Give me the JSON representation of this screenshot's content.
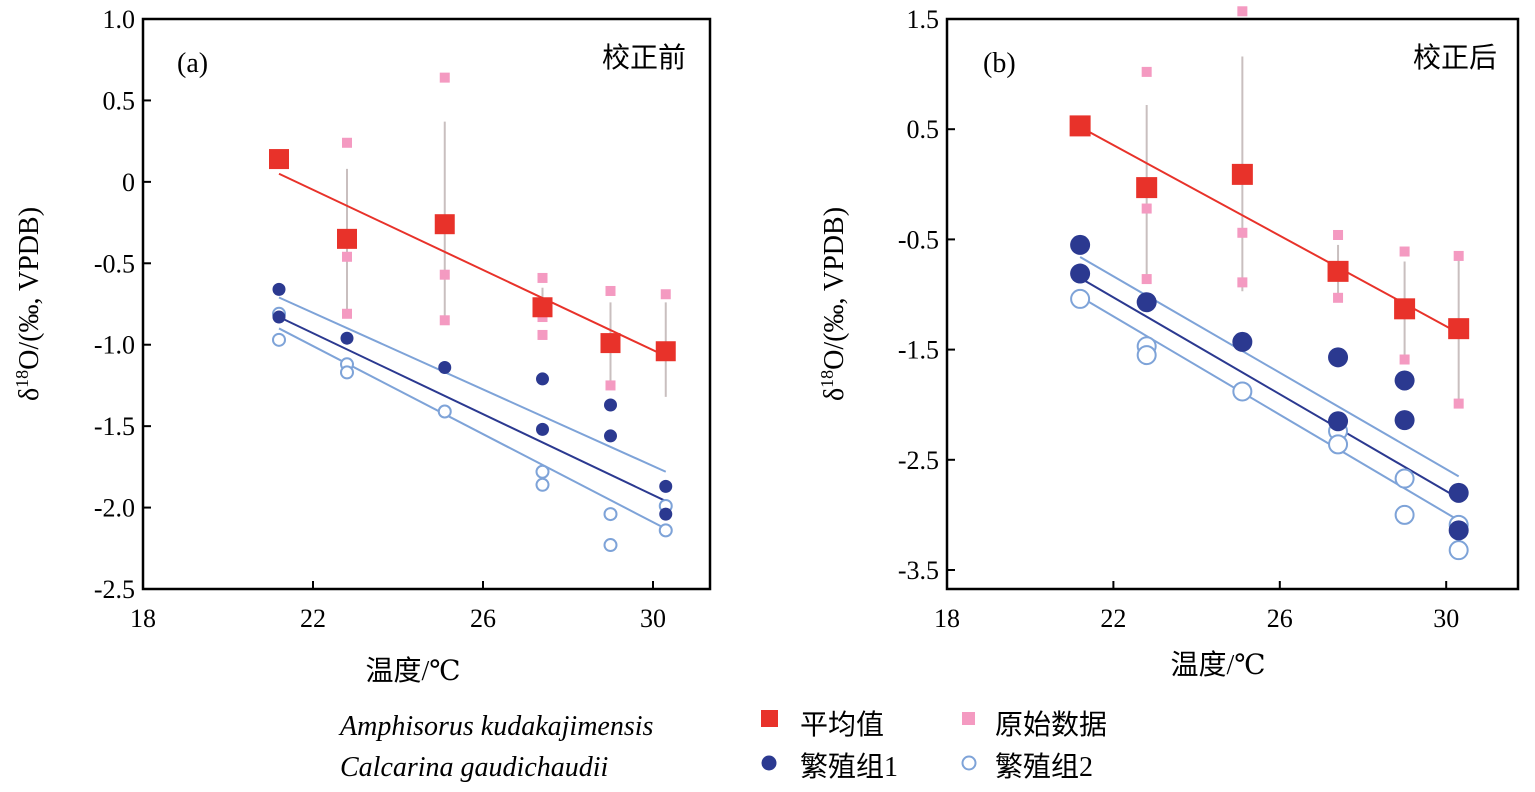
{
  "chart_data": [
    {
      "type": "scatter",
      "panel_label": "(a)",
      "note": "校正前",
      "xlabel": "温度/℃",
      "ylabel": "δ18O/(‰, VPDB)",
      "xlim": [
        18,
        31.5
      ],
      "ylim": [
        -2.5,
        1.0
      ],
      "xticks": [
        "18",
        "22",
        "26",
        "30"
      ],
      "yticks": [
        "1.0",
        "0.5",
        "0",
        "-0.5",
        "-1.0",
        "-1.5",
        "-2.0",
        "-2.5"
      ],
      "series": [
        {
          "name": "平均值",
          "marker": "filled-square-large",
          "color": "#e8322a",
          "x": [
            21.2,
            22.8,
            25.1,
            27.4,
            29.0,
            30.3
          ],
          "y": [
            0.14,
            -0.35,
            -0.26,
            -0.77,
            -0.99,
            -1.04
          ]
        },
        {
          "name": "原始数据",
          "marker": "filled-square-small",
          "color": "#f49ac1",
          "x": [
            22.8,
            22.8,
            22.8,
            25.1,
            25.1,
            25.1,
            27.4,
            27.4,
            27.4,
            29.0,
            29.0,
            30.3
          ],
          "y": [
            0.24,
            -0.46,
            -0.81,
            0.64,
            -0.57,
            -0.85,
            -0.59,
            -0.83,
            -0.94,
            -0.67,
            -1.25,
            -0.69
          ]
        },
        {
          "name": "繁殖组1",
          "marker": "filled-circle",
          "color": "#2b3990",
          "x": [
            21.2,
            21.2,
            22.8,
            25.1,
            27.4,
            27.4,
            29.0,
            29.0,
            30.3,
            30.3
          ],
          "y": [
            -0.66,
            -0.83,
            -0.96,
            -1.14,
            -1.21,
            -1.52,
            -1.37,
            -1.56,
            -1.87,
            -2.04
          ]
        },
        {
          "name": "繁殖组2",
          "marker": "open-circle",
          "color": "#7ea3d8",
          "x": [
            21.2,
            21.2,
            22.8,
            22.8,
            25.1,
            27.4,
            27.4,
            29.0,
            29.0,
            30.3,
            30.3
          ],
          "y": [
            -0.81,
            -0.97,
            -1.12,
            -1.17,
            -1.41,
            -1.78,
            -1.86,
            -2.04,
            -2.23,
            -1.99,
            -2.14
          ]
        }
      ],
      "error_bars": [
        {
          "x": 22.8,
          "low": -0.8,
          "high": 0.08
        },
        {
          "x": 25.1,
          "low": -0.85,
          "high": 0.37
        },
        {
          "x": 27.4,
          "low": -0.84,
          "high": -0.65
        },
        {
          "x": 29.0,
          "low": -1.25,
          "high": -0.74
        },
        {
          "x": 30.3,
          "low": -1.32,
          "high": -0.74
        }
      ],
      "fit_lines": [
        {
          "color": "#e8322a",
          "x": [
            21.2,
            30.3
          ],
          "y": [
            0.05,
            -1.07
          ]
        },
        {
          "color": "#7ea3d8",
          "x": [
            21.2,
            30.3
          ],
          "y": [
            -0.71,
            -1.78
          ]
        },
        {
          "color": "#2b3990",
          "x": [
            21.2,
            30.3
          ],
          "y": [
            -0.83,
            -1.96
          ]
        },
        {
          "color": "#7ea3d8",
          "x": [
            21.2,
            30.3
          ],
          "y": [
            -0.9,
            -2.13
          ]
        }
      ]
    },
    {
      "type": "scatter",
      "panel_label": "(b)",
      "note": "校正后",
      "xlabel": "温度/℃",
      "ylabel": "δ18O/(‰, VPDB)",
      "xlim": [
        18,
        31.5
      ],
      "ylim": [
        -3.5,
        1.6
      ],
      "xticks": [
        "18",
        "22",
        "26",
        "30"
      ],
      "yticks": [
        "1.5",
        "0.5",
        "-0.5",
        "-1.5",
        "-2.5",
        "-3.5"
      ],
      "series": [
        {
          "name": "平均值",
          "marker": "filled-square-large",
          "color": "#e8322a",
          "x": [
            21.2,
            22.8,
            25.1,
            27.4,
            29.0,
            30.3
          ],
          "y": [
            0.53,
            -0.03,
            0.09,
            -0.79,
            -1.13,
            -1.31
          ]
        },
        {
          "name": "原始数据",
          "marker": "filled-square-small",
          "color": "#f49ac1",
          "x": [
            22.8,
            22.8,
            22.8,
            25.1,
            25.1,
            25.1,
            27.4,
            27.4,
            29.0,
            29.0,
            30.3,
            30.3
          ],
          "y": [
            1.02,
            -0.22,
            -0.86,
            1.57,
            -0.44,
            -0.89,
            -0.46,
            -1.03,
            -0.61,
            -1.59,
            -0.65,
            -1.99
          ]
        },
        {
          "name": "繁殖组1",
          "marker": "filled-circle",
          "color": "#2b3990",
          "x": [
            21.2,
            21.2,
            22.8,
            25.1,
            27.4,
            27.4,
            29.0,
            29.0,
            30.3,
            30.3
          ],
          "y": [
            -0.55,
            -0.81,
            -1.07,
            -1.43,
            -1.57,
            -2.15,
            -1.78,
            -2.14,
            -2.8,
            -3.14
          ]
        },
        {
          "name": "繁殖组2",
          "marker": "open-circle",
          "color": "#7ea3d8",
          "x": [
            21.2,
            22.8,
            22.8,
            25.1,
            27.4,
            27.4,
            29.0,
            29.0,
            30.3,
            30.3
          ],
          "y": [
            -1.04,
            -1.47,
            -1.55,
            -1.88,
            -2.24,
            -2.36,
            -2.67,
            -3.0,
            -3.09,
            -3.32
          ]
        }
      ],
      "error_bars": [
        {
          "x": 22.8,
          "low": -0.88,
          "high": 0.72
        },
        {
          "x": 25.1,
          "low": -0.97,
          "high": 1.16
        },
        {
          "x": 27.4,
          "low": -1.0,
          "high": -0.55
        },
        {
          "x": 29.0,
          "low": -1.58,
          "high": -0.7
        },
        {
          "x": 30.3,
          "low": -1.98,
          "high": -0.68
        }
      ],
      "fit_lines": [
        {
          "color": "#e8322a",
          "x": [
            21.2,
            30.3
          ],
          "y": [
            0.52,
            -1.35
          ]
        },
        {
          "color": "#7ea3d8",
          "x": [
            21.2,
            30.3
          ],
          "y": [
            -0.66,
            -2.65
          ]
        },
        {
          "color": "#2b3990",
          "x": [
            21.2,
            30.3
          ],
          "y": [
            -0.85,
            -2.85
          ]
        },
        {
          "color": "#7ea3d8",
          "x": [
            21.2,
            30.3
          ],
          "y": [
            -1.02,
            -3.05
          ]
        }
      ]
    }
  ],
  "legend": {
    "species": [
      "Amphisorus kudakajimensis",
      "Calcarina gaudichaudii"
    ],
    "entries": [
      {
        "label": "平均值",
        "marker": "filled-square-large",
        "color": "#e8322a"
      },
      {
        "label": "原始数据",
        "marker": "filled-square-small",
        "color": "#f49ac1"
      },
      {
        "label": "繁殖组1",
        "marker": "filled-circle",
        "color": "#2b3990"
      },
      {
        "label": "繁殖组2",
        "marker": "open-circle",
        "color": "#7ea3d8"
      }
    ]
  }
}
